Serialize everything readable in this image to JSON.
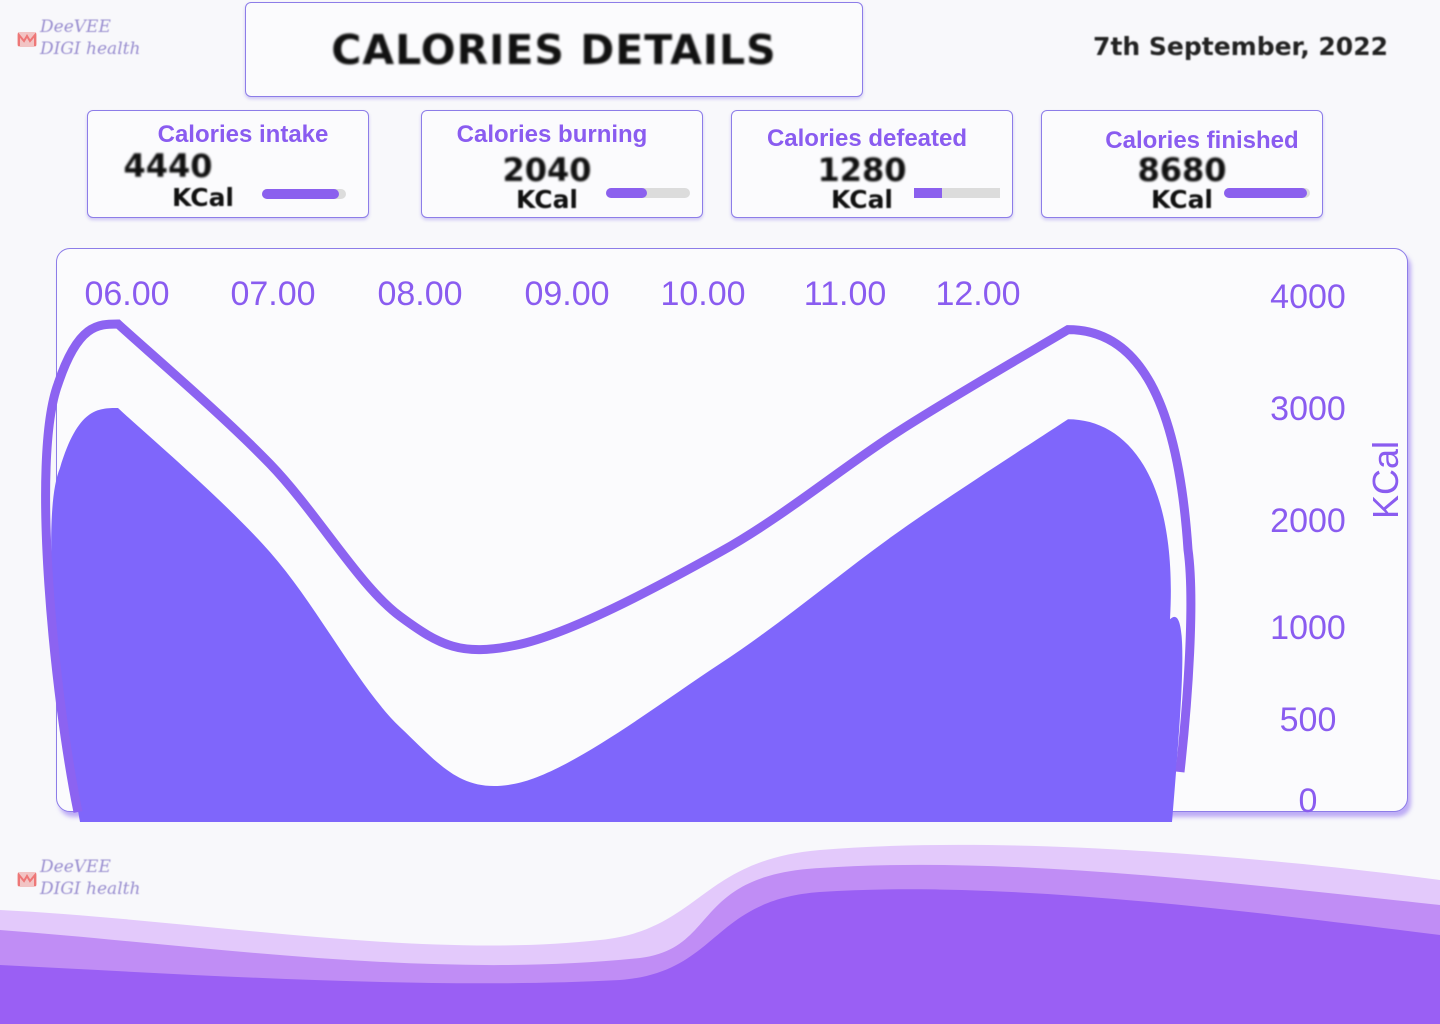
{
  "brand": {
    "line1": "DeeVEE",
    "line2": "DIGI health"
  },
  "header": {
    "title": "CALORIES DETAILS",
    "date": "7th September, 2022"
  },
  "cards": [
    {
      "label": "Calories intake",
      "value": "4440",
      "unit": "KCal",
      "progress": 0.92
    },
    {
      "label": "Calories burning",
      "value": "2040",
      "unit": "KCal",
      "progress": 0.49
    },
    {
      "label": "Calories defeated",
      "value": "1280",
      "unit": "KCal",
      "progress": 0.32
    },
    {
      "label": "Calories finished",
      "value": "8680",
      "unit": "KCal",
      "progress": 0.96
    }
  ],
  "colors": {
    "accent": "#8a5cf0",
    "area_fill": "#7f66fb",
    "outline": "#8c63f1",
    "wave_light": "#e3c9fb",
    "wave_mid": "#c08df5",
    "wave_dark": "#9a5ff4"
  },
  "chart_data": {
    "type": "area",
    "x": [
      "06.00",
      "07.00",
      "08.00",
      "09.00",
      "10.00",
      "11.00",
      "12.00"
    ],
    "ylabel": "KCal",
    "y_ticks": [
      "4000",
      "3000",
      "2000",
      "1000",
      "500",
      "0"
    ],
    "ylim": [
      0,
      4000
    ],
    "series": [
      {
        "values": [
          3000,
          1700,
          450,
          100,
          800,
          1900,
          2900
        ]
      },
      {
        "values": [
          3750,
          2500,
          1100,
          900,
          1700,
          2800,
          3700
        ]
      }
    ],
    "grid": false,
    "legend": "none"
  }
}
